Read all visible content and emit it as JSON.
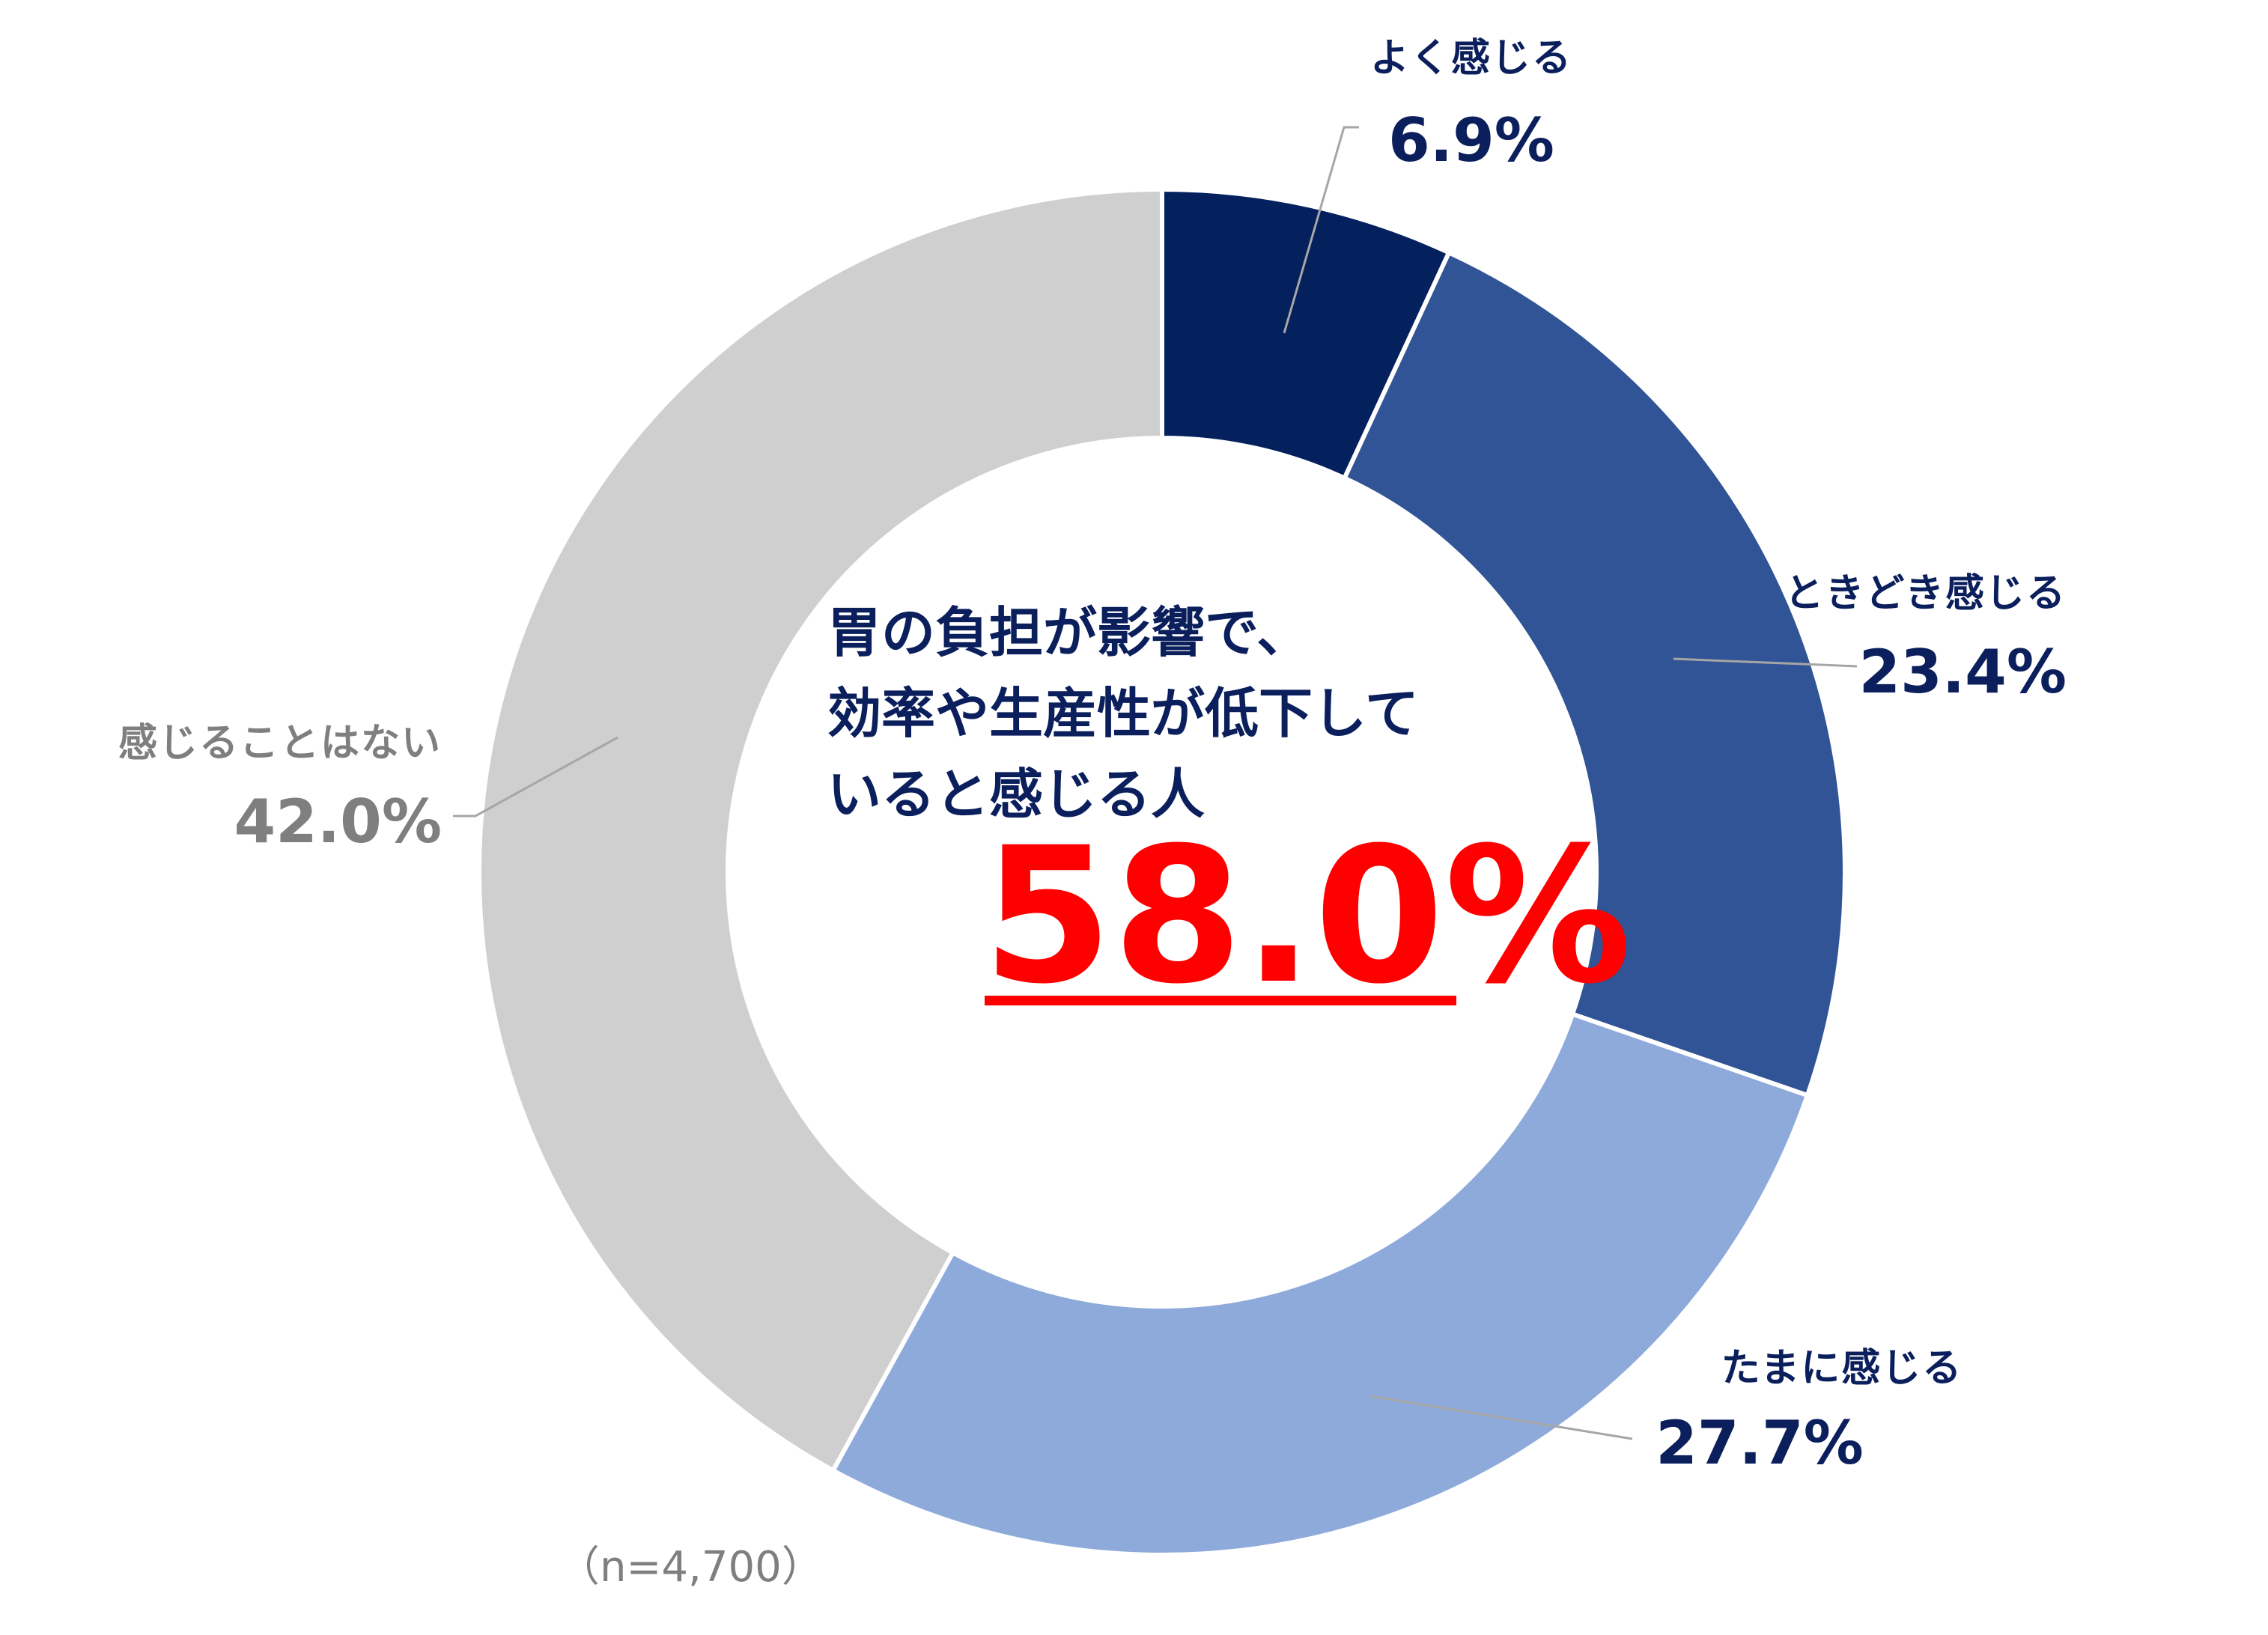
{
  "chart_data": {
    "type": "pie",
    "variant": "donut",
    "categories": [
      "よく感じる",
      "ときどき感じる",
      "たまに感じる",
      "感じることはない"
    ],
    "values": [
      6.9,
      23.4,
      27.7,
      42.0
    ],
    "value_labels": [
      "6.9%",
      "23.4%",
      "27.7%",
      "42.0%"
    ],
    "colors": [
      "#04215e",
      "#305495",
      "#8eaadb",
      "#d0cfd0"
    ],
    "label_colors": [
      "#0b1f5c",
      "#0b1f5c",
      "#0b1f5c",
      "#7f7f7f"
    ],
    "start": "12 o'clock",
    "direction": "clockwise",
    "center_text": [
      "胃の負担が影響で、",
      "効率や生産性が低下して",
      "いると感じる人"
    ],
    "center_value": "58.0%",
    "note": "（n=4,700）"
  }
}
